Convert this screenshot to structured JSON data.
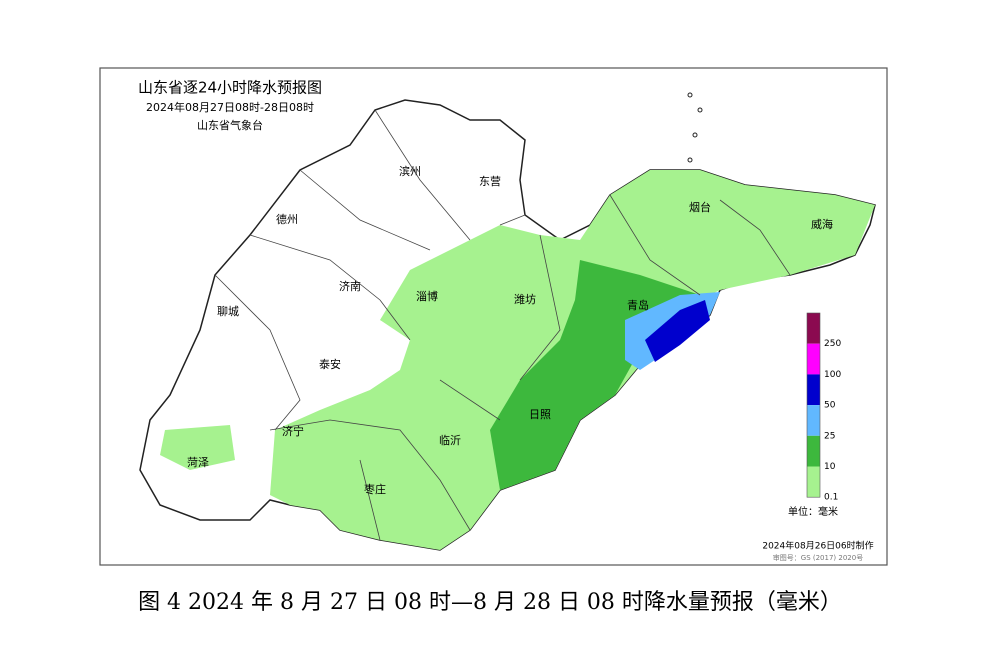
{
  "map": {
    "title": "山东省逐24小时降水预报图",
    "period": "2024年08月27日08时-28日08时",
    "issuer": "山东省气象台",
    "cities": [
      {
        "label": "滨州"
      },
      {
        "label": "东营"
      },
      {
        "label": "德州"
      },
      {
        "label": "烟台"
      },
      {
        "label": "威海"
      },
      {
        "label": "济南"
      },
      {
        "label": "淄博"
      },
      {
        "label": "潍坊"
      },
      {
        "label": "聊城"
      },
      {
        "label": "青岛"
      },
      {
        "label": "泰安"
      },
      {
        "label": "济宁"
      },
      {
        "label": "菏泽"
      },
      {
        "label": "临沂"
      },
      {
        "label": "日照"
      },
      {
        "label": "枣庄"
      }
    ],
    "legend": {
      "items": [
        {
          "label": "250",
          "color": "#8b0a50"
        },
        {
          "label": "100",
          "color": "#ff00ff"
        },
        {
          "label": "50",
          "color": "#0000cd"
        },
        {
          "label": "25",
          "color": "#61b8ff"
        },
        {
          "label": "10",
          "color": "#3db83d"
        },
        {
          "label": "0.1",
          "color": "#a6f28f"
        }
      ],
      "unit": "单位：毫米"
    },
    "made": "2024年08月26日06时制作",
    "approval": "审图号：GS (2017) 2020号"
  },
  "caption": "图 4 2024 年 8 月 27 日 08 时—8 月 28 日 08 时降水量预报（毫米）"
}
